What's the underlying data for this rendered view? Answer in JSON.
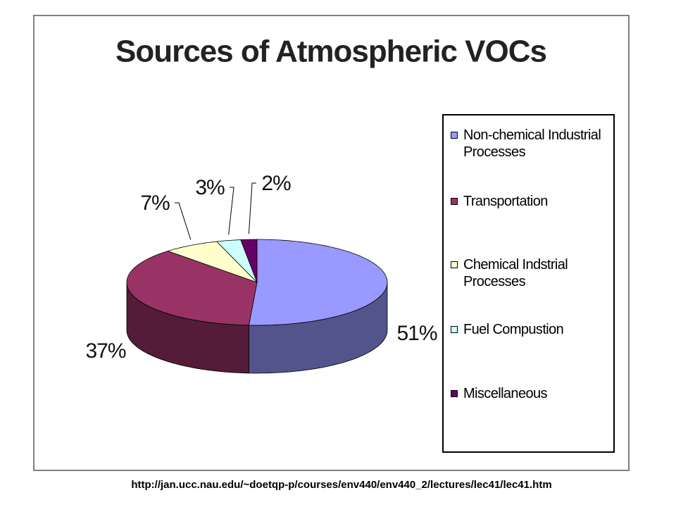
{
  "chart_data": {
    "type": "pie3d",
    "title": "Sources of Atmospheric VOCs",
    "categories": [
      "Non-chemical Industrial Processes",
      "Transportation",
      "Chemical Indstrial Processes",
      "Fuel Compustion",
      "Miscellaneous"
    ],
    "values": [
      51,
      37,
      7,
      3,
      2
    ],
    "value_labels": [
      "51%",
      "37%",
      "7%",
      "3%",
      "2%"
    ],
    "colors": [
      "#9999ff",
      "#993366",
      "#ffffcc",
      "#ccffff",
      "#660066"
    ],
    "legend": "right",
    "source": "http://jan.ucc.nau.edu/~doetqp-p/courses/env440/env440_2/lectures/lec41/lec41.htm"
  }
}
